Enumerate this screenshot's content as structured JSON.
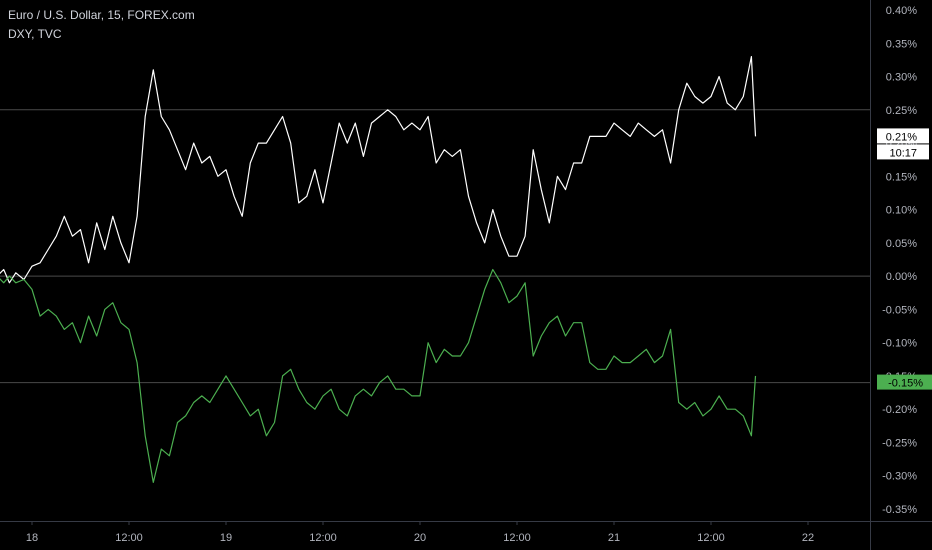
{
  "legend": {
    "main": "Euro / U.S. Dollar, 15, FOREX.com",
    "compare": "DXY, TVC"
  },
  "colors": {
    "background": "#000000",
    "main_series": "#ffffff",
    "compare_series": "#4caf50",
    "axis_text": "#b2b5be",
    "axis_line": "#363a45"
  },
  "price_tags": {
    "main_value": "0.21%",
    "countdown": "10:17",
    "compare_value": "-0.15%"
  },
  "chart_data": {
    "type": "line",
    "y_unit": "percent change",
    "ylim": [
      -0.36,
      0.4
    ],
    "y_ticks": [
      "0.40%",
      "0.35%",
      "0.30%",
      "0.25%",
      "0.20%",
      "0.15%",
      "0.10%",
      "0.05%",
      "0.00%",
      "-0.05%",
      "-0.10%",
      "-0.15%",
      "-0.20%",
      "-0.25%",
      "-0.30%",
      "-0.35%"
    ],
    "y_tick_values": [
      0.4,
      0.35,
      0.3,
      0.25,
      0.2,
      0.15,
      0.1,
      0.05,
      0.0,
      -0.05,
      -0.1,
      -0.15,
      -0.2,
      -0.25,
      -0.3,
      -0.35
    ],
    "x_ticks": [
      "18",
      "12:00",
      "19",
      "12:00",
      "20",
      "12:00",
      "21",
      "12:00",
      "22"
    ],
    "x_tick_values": [
      0,
      12,
      24,
      36,
      48,
      60,
      72,
      84,
      96
    ],
    "x_unit": "hours from 18th 00:00",
    "xlim": [
      -4.3,
      110
    ],
    "horizontal_lines": [
      0.25,
      0.0,
      -0.16
    ],
    "series": [
      {
        "name": "Euro / U.S. Dollar, 15, FOREX.com",
        "color": "#ffffff",
        "x": [
          -4.3,
          -3.5,
          -2.8,
          -2,
          -1,
          0,
          1,
          2,
          3,
          4,
          5,
          6,
          7,
          8,
          9,
          10,
          11,
          12,
          13,
          14,
          15,
          16,
          17,
          18,
          19,
          20,
          21,
          22,
          23,
          24,
          25,
          26,
          27,
          28,
          29,
          30,
          31,
          32,
          33,
          34,
          35,
          36,
          37,
          38,
          39,
          40,
          41,
          42,
          43,
          44,
          45,
          46,
          47,
          48,
          49,
          50,
          51,
          52,
          53,
          54,
          55,
          56,
          57,
          58,
          59,
          60,
          61,
          62,
          63,
          64,
          65,
          66,
          67,
          68,
          69,
          70,
          71,
          72,
          73,
          74,
          75,
          76,
          77,
          78,
          79,
          80,
          81,
          82,
          83,
          84,
          85,
          86,
          87,
          88,
          89,
          89.5
        ],
        "y": [
          0.0,
          0.01,
          -0.01,
          0.005,
          -0.005,
          0.015,
          0.02,
          0.04,
          0.06,
          0.09,
          0.06,
          0.07,
          0.02,
          0.08,
          0.04,
          0.09,
          0.05,
          0.02,
          0.09,
          0.24,
          0.31,
          0.24,
          0.22,
          0.19,
          0.16,
          0.2,
          0.17,
          0.18,
          0.15,
          0.16,
          0.12,
          0.09,
          0.17,
          0.2,
          0.2,
          0.22,
          0.24,
          0.2,
          0.11,
          0.12,
          0.16,
          0.11,
          0.17,
          0.23,
          0.2,
          0.23,
          0.18,
          0.23,
          0.24,
          0.25,
          0.24,
          0.22,
          0.23,
          0.22,
          0.24,
          0.17,
          0.19,
          0.18,
          0.19,
          0.12,
          0.08,
          0.05,
          0.1,
          0.06,
          0.03,
          0.03,
          0.06,
          0.19,
          0.13,
          0.08,
          0.15,
          0.13,
          0.17,
          0.17,
          0.21,
          0.21,
          0.21,
          0.23,
          0.22,
          0.21,
          0.23,
          0.22,
          0.21,
          0.22,
          0.17,
          0.25,
          0.29,
          0.27,
          0.26,
          0.27,
          0.3,
          0.26,
          0.25,
          0.27,
          0.33,
          0.21
        ]
      },
      {
        "name": "DXY, TVC",
        "color": "#4caf50",
        "x": [
          -4.3,
          -3.5,
          -2.8,
          -2,
          -1,
          0,
          1,
          2,
          3,
          4,
          5,
          6,
          7,
          8,
          9,
          10,
          11,
          12,
          13,
          14,
          15,
          16,
          17,
          18,
          19,
          20,
          21,
          22,
          23,
          24,
          25,
          26,
          27,
          28,
          29,
          30,
          31,
          32,
          33,
          34,
          35,
          36,
          37,
          38,
          39,
          40,
          41,
          42,
          43,
          44,
          45,
          46,
          47,
          48,
          49,
          50,
          51,
          52,
          53,
          54,
          55,
          56,
          57,
          58,
          59,
          60,
          61,
          62,
          63,
          64,
          65,
          66,
          67,
          68,
          69,
          70,
          71,
          72,
          73,
          74,
          75,
          76,
          77,
          78,
          79,
          80,
          81,
          82,
          83,
          84,
          85,
          86,
          87,
          88,
          89,
          89.5
        ],
        "y": [
          0.0,
          -0.01,
          0.0,
          -0.01,
          -0.005,
          -0.02,
          -0.06,
          -0.05,
          -0.06,
          -0.08,
          -0.07,
          -0.1,
          -0.06,
          -0.09,
          -0.05,
          -0.04,
          -0.07,
          -0.08,
          -0.13,
          -0.24,
          -0.31,
          -0.26,
          -0.27,
          -0.22,
          -0.21,
          -0.19,
          -0.18,
          -0.19,
          -0.17,
          -0.15,
          -0.17,
          -0.19,
          -0.21,
          -0.2,
          -0.24,
          -0.22,
          -0.15,
          -0.14,
          -0.17,
          -0.19,
          -0.2,
          -0.18,
          -0.17,
          -0.2,
          -0.21,
          -0.18,
          -0.17,
          -0.18,
          -0.16,
          -0.15,
          -0.17,
          -0.17,
          -0.18,
          -0.18,
          -0.1,
          -0.13,
          -0.11,
          -0.12,
          -0.12,
          -0.1,
          -0.06,
          -0.02,
          0.01,
          -0.01,
          -0.04,
          -0.03,
          -0.01,
          -0.12,
          -0.09,
          -0.07,
          -0.06,
          -0.09,
          -0.07,
          -0.07,
          -0.13,
          -0.14,
          -0.14,
          -0.12,
          -0.13,
          -0.13,
          -0.12,
          -0.11,
          -0.13,
          -0.12,
          -0.08,
          -0.19,
          -0.2,
          -0.19,
          -0.21,
          -0.2,
          -0.18,
          -0.2,
          -0.2,
          -0.21,
          -0.24,
          -0.15
        ]
      }
    ]
  }
}
